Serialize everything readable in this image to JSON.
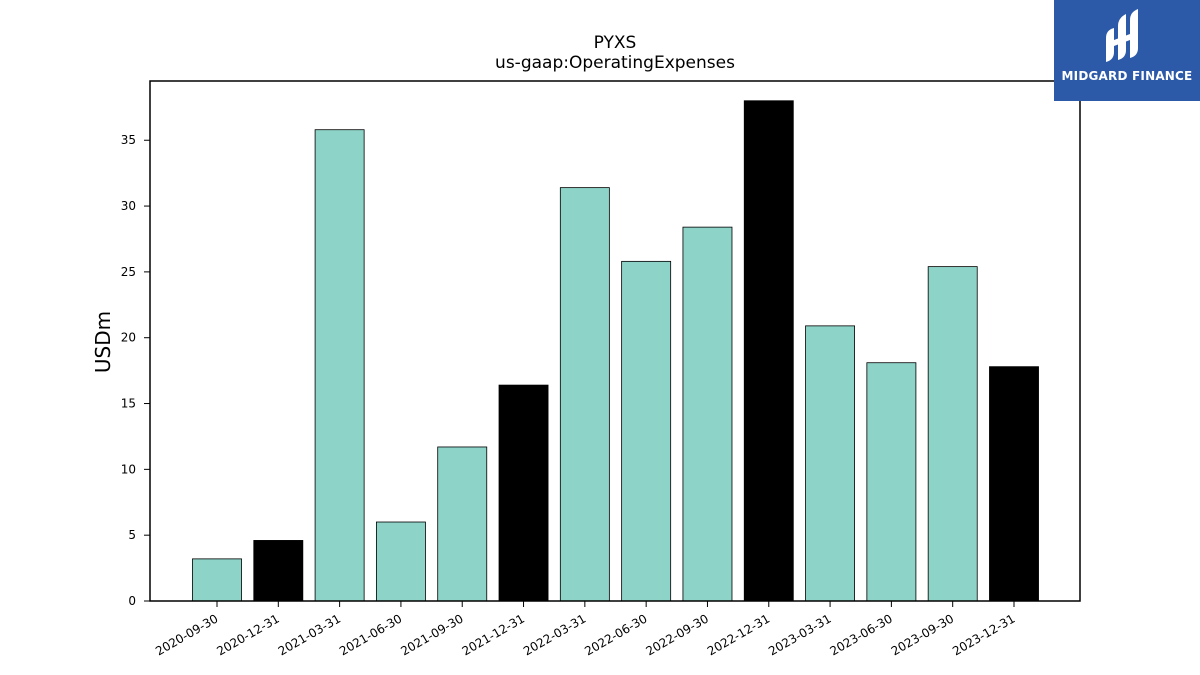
{
  "brand": {
    "name": "MIDGARD FINANCE",
    "background": "#2d5aa8"
  },
  "chart_data": {
    "type": "bar",
    "title": "PYXS",
    "subtitle": "us-gaap:OperatingExpenses",
    "xlabel": "",
    "ylabel": "USDm",
    "ylim": [
      0,
      39.5
    ],
    "yticks": [
      0,
      5,
      10,
      15,
      20,
      25,
      30,
      35
    ],
    "grid": false,
    "categories": [
      "2020-09-30",
      "2020-12-31",
      "2021-03-31",
      "2021-06-30",
      "2021-09-30",
      "2021-12-31",
      "2022-03-31",
      "2022-06-30",
      "2022-09-30",
      "2022-12-31",
      "2023-03-31",
      "2023-06-30",
      "2023-09-30",
      "2023-12-31"
    ],
    "values": [
      3.2,
      4.6,
      35.8,
      6.0,
      11.7,
      16.4,
      31.4,
      25.8,
      28.4,
      38.0,
      20.9,
      18.1,
      25.4,
      17.8
    ],
    "quarter_color": "#8dd3c7",
    "year_end_color": "#000000",
    "year_end_flags": [
      false,
      true,
      false,
      false,
      false,
      true,
      false,
      false,
      false,
      true,
      false,
      false,
      false,
      true
    ]
  }
}
